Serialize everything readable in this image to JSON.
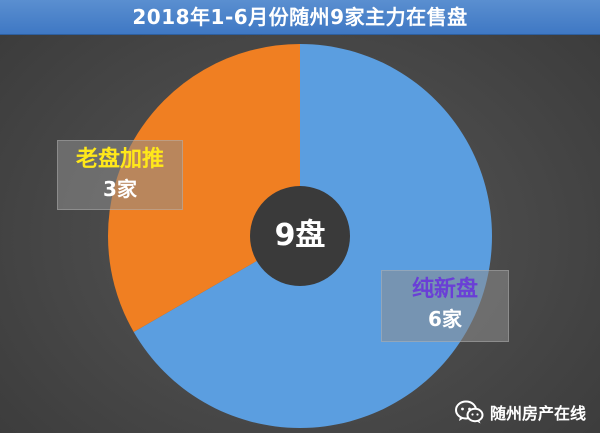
{
  "title": "2018年1-6月份随州9家主力在售盘",
  "center_label": "9盘",
  "watermark": "随州房产在线",
  "colors": {
    "old": "#f07f22",
    "new": "#5b9ee0",
    "center": "#3a3a3a"
  },
  "chart_data": {
    "type": "pie",
    "title": "2018年1-6月份随州9家主力在售盘",
    "slices": [
      {
        "name": "老盘加推",
        "value": 3,
        "label": "3家"
      },
      {
        "name": "纯新盘",
        "value": 6,
        "label": "6家"
      }
    ],
    "center_text": "9盘"
  }
}
